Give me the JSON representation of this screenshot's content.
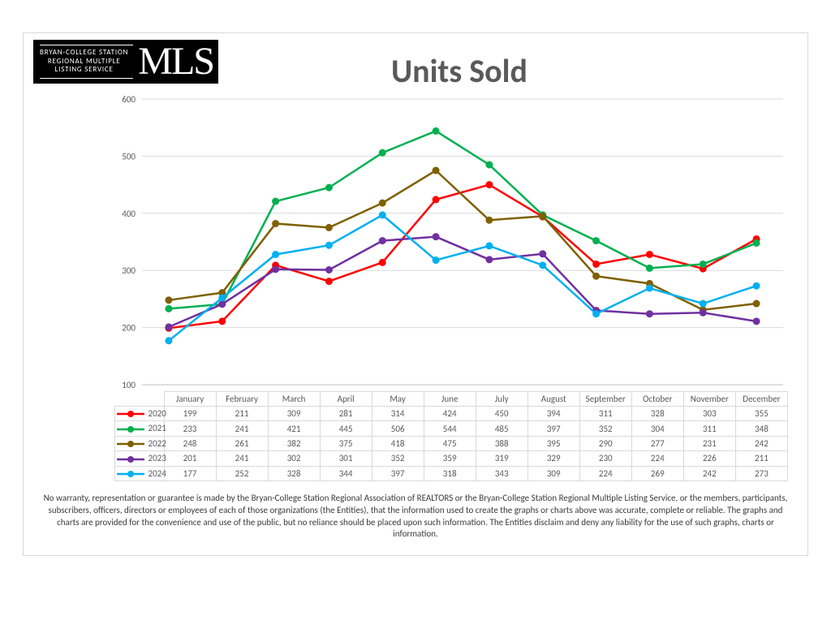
{
  "logo": {
    "line1": "BRYAN-COLLEGE STATION",
    "line2": "REGIONAL MULTIPLE",
    "line3": "LISTING SERVICE",
    "big": "MLS"
  },
  "chart": {
    "title": "Units Sold",
    "type": "line",
    "months": [
      "January",
      "February",
      "March",
      "April",
      "May",
      "June",
      "July",
      "August",
      "September",
      "October",
      "November",
      "December"
    ],
    "ylim": [
      100,
      600
    ],
    "ytick_step": 100,
    "grid_color": "#d9d9d9",
    "axis_color": "#bfbfbf",
    "tick_label_color": "#595959",
    "tick_label_fontsize": 11,
    "line_width": 2.5,
    "marker_radius": 4,
    "series": [
      {
        "name": "2020",
        "color": "#ff0000",
        "values": [
          199,
          211,
          309,
          281,
          314,
          424,
          450,
          394,
          311,
          328,
          303,
          355
        ]
      },
      {
        "name": "2021",
        "color": "#00b050",
        "values": [
          233,
          241,
          421,
          445,
          506,
          544,
          485,
          397,
          352,
          304,
          311,
          348
        ]
      },
      {
        "name": "2022",
        "color": "#7f6000",
        "values": [
          248,
          261,
          382,
          375,
          418,
          475,
          388,
          395,
          290,
          277,
          231,
          242
        ]
      },
      {
        "name": "2023",
        "color": "#7030a0",
        "values": [
          201,
          241,
          302,
          301,
          352,
          359,
          319,
          329,
          230,
          224,
          226,
          211
        ]
      },
      {
        "name": "2024",
        "color": "#00b0f0",
        "values": [
          177,
          252,
          328,
          344,
          397,
          318,
          343,
          309,
          224,
          269,
          242,
          273
        ]
      }
    ]
  },
  "disclaimer": "No warranty, representation or guarantee is made by the Bryan-College Station Regional Association of REALTORS or the Bryan-College Station Regional Multiple Listing Service, or the members, participants, subscribers, officers, directors or employees of each of those organizations (the Entities), that the information used to create the graphs or charts above was accurate, complete or reliable.  The graphs and charts are provided for the convenience and use of the public, but no reliance should be placed upon such information.  The Entities disclaim and deny any liability for the use of such graphs, charts or information."
}
